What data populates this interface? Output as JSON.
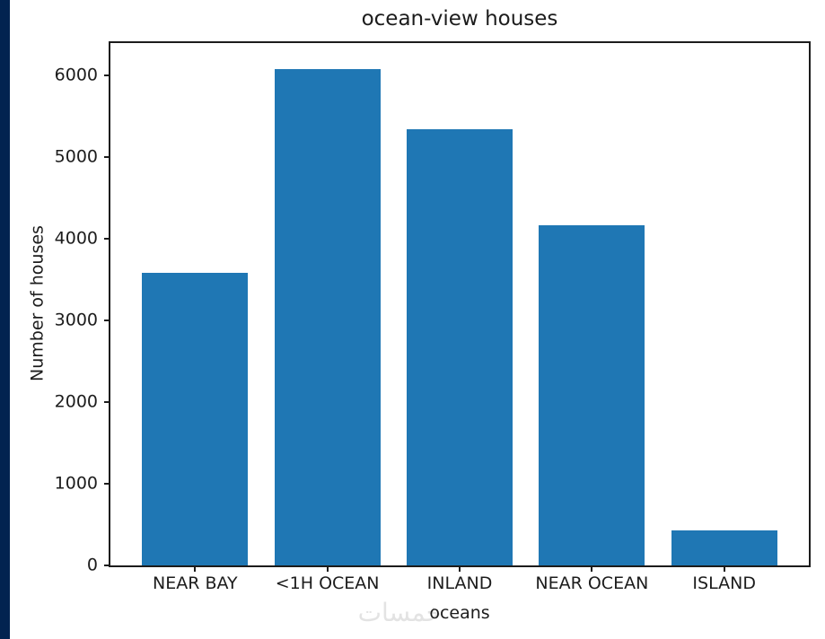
{
  "page": {
    "background": "#ffffff",
    "accent_bar_color": "#022350"
  },
  "chart_data": {
    "type": "bar",
    "title": "ocean-view houses",
    "xlabel": "oceans",
    "ylabel": "Number of houses",
    "categories": [
      "NEAR BAY",
      "<1H OCEAN",
      "INLAND",
      "NEAR OCEAN",
      "ISLAND"
    ],
    "values": [
      3590,
      6080,
      5340,
      4170,
      430
    ],
    "bar_color": "#1f77b4",
    "yticks": [
      0,
      1000,
      2000,
      3000,
      4000,
      5000,
      6000
    ],
    "ylim": [
      0,
      6400
    ],
    "xlim": [
      -0.64,
      4.64
    ],
    "bar_width": 0.8,
    "grid": false,
    "legend": "none",
    "axis_color": "#1c1c1c"
  },
  "watermark": {
    "text": "خمسات",
    "color": "#e3e3e3"
  }
}
